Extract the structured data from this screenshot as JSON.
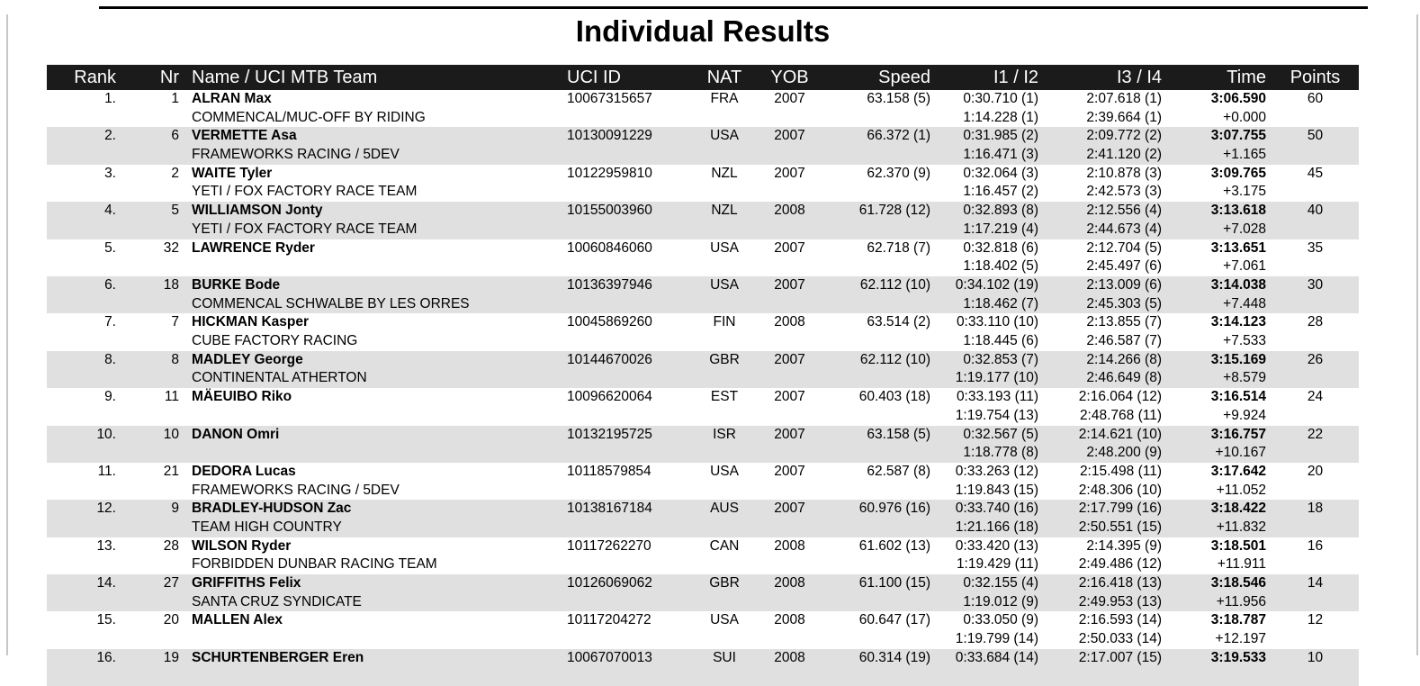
{
  "page": {
    "title": "Individual Results"
  },
  "colors": {
    "header_bg": "#1b1b1b",
    "header_text": "#ffffff",
    "row_stripe": "#e0e0e0",
    "top_rule": "#000000",
    "page_edge": "#c6c6c6"
  },
  "table": {
    "columns": [
      "Rank",
      "Nr",
      "Name / UCI MTB Team",
      "UCI ID",
      "NAT",
      "YOB",
      "Speed",
      "I1 / I2",
      "I3 / I4",
      "Time",
      "Points"
    ],
    "rows": [
      {
        "rank": "1.",
        "nr": "1",
        "name": "ALRAN Max",
        "team": "COMMENCAL/MUC-OFF BY RIDING",
        "uci_id": "10067315657",
        "nat": "FRA",
        "yob": "2007",
        "speed": "63.158 (5)",
        "i1": "0:30.710 (1)",
        "i2": "1:14.228 (1)",
        "i3": "2:07.618 (1)",
        "i4": "2:39.664 (1)",
        "time": "3:06.590",
        "gap": "+0.000",
        "points": "60"
      },
      {
        "rank": "2.",
        "nr": "6",
        "name": "VERMETTE Asa",
        "team": "FRAMEWORKS RACING / 5DEV",
        "uci_id": "10130091229",
        "nat": "USA",
        "yob": "2007",
        "speed": "66.372 (1)",
        "i1": "0:31.985 (2)",
        "i2": "1:16.471 (3)",
        "i3": "2:09.772 (2)",
        "i4": "2:41.120 (2)",
        "time": "3:07.755",
        "gap": "+1.165",
        "points": "50"
      },
      {
        "rank": "3.",
        "nr": "2",
        "name": "WAITE Tyler",
        "team": "YETI / FOX FACTORY RACE TEAM",
        "uci_id": "10122959810",
        "nat": "NZL",
        "yob": "2007",
        "speed": "62.370 (9)",
        "i1": "0:32.064 (3)",
        "i2": "1:16.457 (2)",
        "i3": "2:10.878 (3)",
        "i4": "2:42.573 (3)",
        "time": "3:09.765",
        "gap": "+3.175",
        "points": "45"
      },
      {
        "rank": "4.",
        "nr": "5",
        "name": "WILLIAMSON Jonty",
        "team": "YETI / FOX FACTORY RACE TEAM",
        "uci_id": "10155003960",
        "nat": "NZL",
        "yob": "2008",
        "speed": "61.728 (12)",
        "i1": "0:32.893 (8)",
        "i2": "1:17.219 (4)",
        "i3": "2:12.556 (4)",
        "i4": "2:44.673 (4)",
        "time": "3:13.618",
        "gap": "+7.028",
        "points": "40"
      },
      {
        "rank": "5.",
        "nr": "32",
        "name": "LAWRENCE Ryder",
        "team": "",
        "uci_id": "10060846060",
        "nat": "USA",
        "yob": "2007",
        "speed": "62.718 (7)",
        "i1": "0:32.818 (6)",
        "i2": "1:18.402 (5)",
        "i3": "2:12.704 (5)",
        "i4": "2:45.497 (6)",
        "time": "3:13.651",
        "gap": "+7.061",
        "points": "35"
      },
      {
        "rank": "6.",
        "nr": "18",
        "name": "BURKE Bode",
        "team": "COMMENCAL SCHWALBE BY LES ORRES",
        "uci_id": "10136397946",
        "nat": "USA",
        "yob": "2007",
        "speed": "62.112 (10)",
        "i1": "0:34.102 (19)",
        "i2": "1:18.462 (7)",
        "i3": "2:13.009 (6)",
        "i4": "2:45.303 (5)",
        "time": "3:14.038",
        "gap": "+7.448",
        "points": "30"
      },
      {
        "rank": "7.",
        "nr": "7",
        "name": "HICKMAN Kasper",
        "team": "CUBE FACTORY RACING",
        "uci_id": "10045869260",
        "nat": "FIN",
        "yob": "2008",
        "speed": "63.514 (2)",
        "i1": "0:33.110 (10)",
        "i2": "1:18.445 (6)",
        "i3": "2:13.855 (7)",
        "i4": "2:46.587 (7)",
        "time": "3:14.123",
        "gap": "+7.533",
        "points": "28"
      },
      {
        "rank": "8.",
        "nr": "8",
        "name": "MADLEY George",
        "team": "CONTINENTAL ATHERTON",
        "uci_id": "10144670026",
        "nat": "GBR",
        "yob": "2007",
        "speed": "62.112 (10)",
        "i1": "0:32.853 (7)",
        "i2": "1:19.177 (10)",
        "i3": "2:14.266 (8)",
        "i4": "2:46.649 (8)",
        "time": "3:15.169",
        "gap": "+8.579",
        "points": "26"
      },
      {
        "rank": "9.",
        "nr": "11",
        "name": "MÄEUIBO Riko",
        "team": "",
        "uci_id": "10096620064",
        "nat": "EST",
        "yob": "2007",
        "speed": "60.403 (18)",
        "i1": "0:33.193 (11)",
        "i2": "1:19.754 (13)",
        "i3": "2:16.064 (12)",
        "i4": "2:48.768 (11)",
        "time": "3:16.514",
        "gap": "+9.924",
        "points": "24"
      },
      {
        "rank": "10.",
        "nr": "10",
        "name": "DANON Omri",
        "team": "",
        "uci_id": "10132195725",
        "nat": "ISR",
        "yob": "2007",
        "speed": "63.158 (5)",
        "i1": "0:32.567 (5)",
        "i2": "1:18.778 (8)",
        "i3": "2:14.621 (10)",
        "i4": "2:48.200 (9)",
        "time": "3:16.757",
        "gap": "+10.167",
        "points": "22"
      },
      {
        "rank": "11.",
        "nr": "21",
        "name": "DEDORA Lucas",
        "team": "FRAMEWORKS RACING / 5DEV",
        "uci_id": "10118579854",
        "nat": "USA",
        "yob": "2007",
        "speed": "62.587 (8)",
        "i1": "0:33.263 (12)",
        "i2": "1:19.843 (15)",
        "i3": "2:15.498 (11)",
        "i4": "2:48.306 (10)",
        "time": "3:17.642",
        "gap": "+11.052",
        "points": "20"
      },
      {
        "rank": "12.",
        "nr": "9",
        "name": "BRADLEY-HUDSON Zac",
        "team": "TEAM HIGH COUNTRY",
        "uci_id": "10138167184",
        "nat": "AUS",
        "yob": "2007",
        "speed": "60.976 (16)",
        "i1": "0:33.740 (16)",
        "i2": "1:21.166 (18)",
        "i3": "2:17.799 (16)",
        "i4": "2:50.551 (15)",
        "time": "3:18.422",
        "gap": "+11.832",
        "points": "18"
      },
      {
        "rank": "13.",
        "nr": "28",
        "name": "WILSON Ryder",
        "team": "FORBIDDEN DUNBAR RACING TEAM",
        "uci_id": "10117262270",
        "nat": "CAN",
        "yob": "2008",
        "speed": "61.602 (13)",
        "i1": "0:33.420 (13)",
        "i2": "1:19.429 (11)",
        "i3": "2:14.395 (9)",
        "i4": "2:49.486 (12)",
        "time": "3:18.501",
        "gap": "+11.911",
        "points": "16"
      },
      {
        "rank": "14.",
        "nr": "27",
        "name": "GRIFFITHS Felix",
        "team": "SANTA CRUZ SYNDICATE",
        "uci_id": "10126069062",
        "nat": "GBR",
        "yob": "2008",
        "speed": "61.100 (15)",
        "i1": "0:32.155 (4)",
        "i2": "1:19.012 (9)",
        "i3": "2:16.418 (13)",
        "i4": "2:49.953 (13)",
        "time": "3:18.546",
        "gap": "+11.956",
        "points": "14"
      },
      {
        "rank": "15.",
        "nr": "20",
        "name": "MALLEN Alex",
        "team": "",
        "uci_id": "10117204272",
        "nat": "USA",
        "yob": "2008",
        "speed": "60.647 (17)",
        "i1": "0:33.050 (9)",
        "i2": "1:19.799 (14)",
        "i3": "2:16.593 (14)",
        "i4": "2:50.033 (14)",
        "time": "3:18.787",
        "gap": "+12.197",
        "points": "12"
      },
      {
        "rank": "16.",
        "nr": "19",
        "name": "SCHURTENBERGER Eren",
        "team": "",
        "uci_id": "10067070013",
        "nat": "SUI",
        "yob": "2008",
        "speed": "60.314 (19)",
        "i1": "0:33.684 (14)",
        "i2": "",
        "i3": "2:17.007 (15)",
        "i4": "",
        "time": "3:19.533",
        "gap": "",
        "points": "10"
      }
    ]
  }
}
